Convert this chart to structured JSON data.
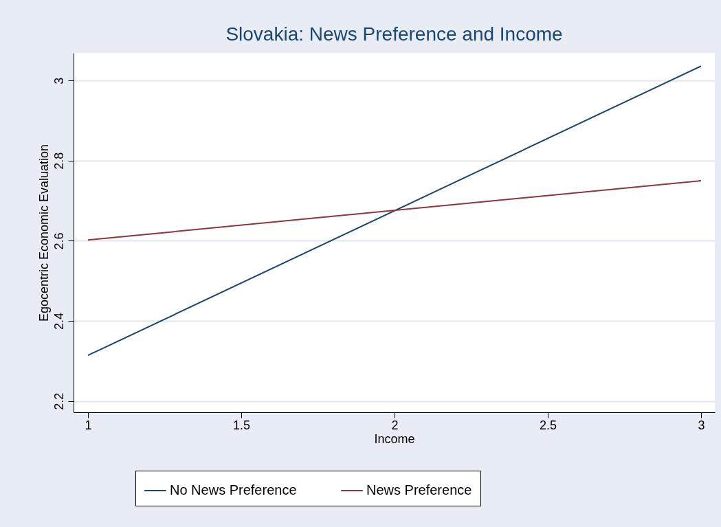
{
  "chart_data": {
    "type": "line",
    "title": "Slovakia: News Preference and Income",
    "xlabel": "Income",
    "ylabel": "Egocentric Economic Evaluation",
    "x": [
      1,
      3
    ],
    "series": [
      {
        "name": "No News Preference",
        "color": "#1a476f",
        "values": [
          2.314,
          3.036
        ]
      },
      {
        "name": "News Preference",
        "color": "#90353b",
        "values": [
          2.602,
          2.75
        ]
      }
    ],
    "xlim": [
      0.953,
      3.045
    ],
    "ylim": [
      2.172,
      3.069
    ],
    "xticks": [
      1,
      1.5,
      2,
      2.5,
      3
    ],
    "yticks": [
      2.2,
      2.4,
      2.6,
      2.8,
      3
    ],
    "grid": "y",
    "legend": "bottom"
  }
}
